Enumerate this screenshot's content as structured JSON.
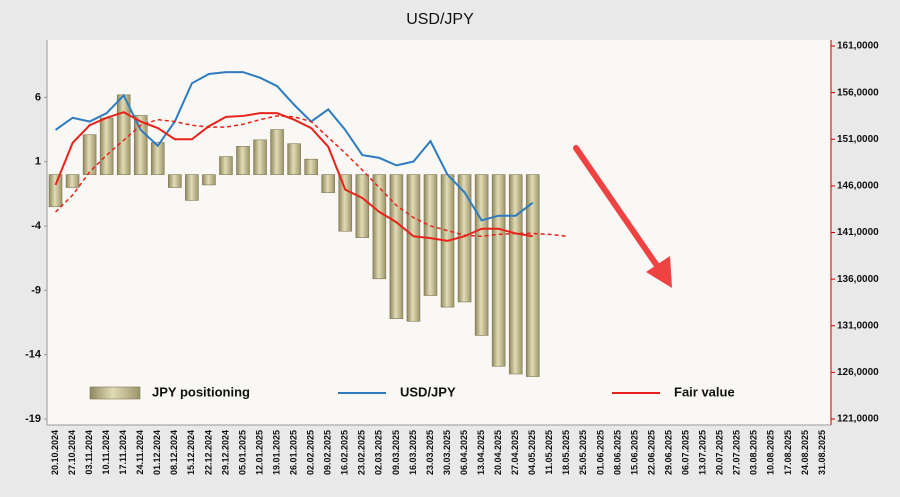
{
  "chart_data": {
    "type": "combo",
    "title": "USD/JPY",
    "categories": [
      "20.10.2024",
      "27.10.2024",
      "03.11.2024",
      "10.11.2024",
      "17.11.2024",
      "24.11.2024",
      "01.12.2024",
      "08.12.2024",
      "15.12.2024",
      "22.12.2024",
      "29.12.2024",
      "05.01.2025",
      "12.01.2025",
      "19.01.2025",
      "26.01.2025",
      "02.02.2025",
      "09.02.2025",
      "16.02.2025",
      "23.02.2025",
      "02.03.2025",
      "09.03.2025",
      "16.03.2025",
      "23.03.2025",
      "30.03.2025",
      "06.04.2025",
      "13.04.2025",
      "20.04.2025",
      "27.04.2025",
      "04.05.2025",
      "11.05.2025",
      "18.05.2025",
      "25.05.2025",
      "01.06.2025",
      "08.06.2025",
      "15.06.2025",
      "22.06.2025",
      "29.06.2025",
      "06.07.2025",
      "13.07.2025",
      "20.07.2025",
      "27.07.2025",
      "03.08.2025",
      "10.08.2025",
      "17.08.2025",
      "24.08.2025",
      "31.08.2025"
    ],
    "ylim": [
      -19,
      10
    ],
    "yticks": [
      -19,
      -14,
      -9,
      -4,
      1,
      6
    ],
    "y2lim": [
      121,
      161
    ],
    "y2ticks": [
      {
        "value": 121,
        "label": "121,0000"
      },
      {
        "value": 126,
        "label": "126,0000"
      },
      {
        "value": 131,
        "label": "131,0000"
      },
      {
        "value": 136,
        "label": "136,0000"
      },
      {
        "value": 141,
        "label": "141,0000"
      },
      {
        "value": 146,
        "label": "146,0000"
      },
      {
        "value": 151,
        "label": "151,0000"
      },
      {
        "value": 156,
        "label": "156,0000"
      },
      {
        "value": 161,
        "label": "161,0000"
      }
    ],
    "grid": false,
    "legend": "bottom",
    "series": [
      {
        "name": "JPY positioning",
        "type": "bar",
        "color": "#c9c197",
        "values": [
          -2.5,
          -1.0,
          3.1,
          4.4,
          6.2,
          4.6,
          2.5,
          -1.0,
          -2.0,
          -0.8,
          1.4,
          2.2,
          2.7,
          3.5,
          2.4,
          1.2,
          -1.4,
          -4.4,
          -4.9,
          -8.1,
          -11.2,
          -11.4,
          -9.4,
          -10.3,
          -9.9,
          -12.5,
          -14.9,
          -15.5,
          -15.7,
          null,
          null,
          null,
          null,
          null,
          null,
          null,
          null,
          null,
          null,
          null,
          null,
          null,
          null,
          null,
          null,
          null
        ]
      },
      {
        "name": "USD/JPY",
        "type": "line",
        "color": "#2e7cc0",
        "axis": "y2",
        "values": [
          152.0,
          153.3,
          152.9,
          153.8,
          155.7,
          152.0,
          150.3,
          152.9,
          157.0,
          158.0,
          158.2,
          158.2,
          157.6,
          156.7,
          154.7,
          152.9,
          154.2,
          152.0,
          149.3,
          149.0,
          148.2,
          148.6,
          150.8,
          147.2,
          145.3,
          142.3,
          142.8,
          142.8,
          144.2,
          null,
          null,
          null,
          null,
          null,
          null,
          null,
          null,
          null,
          null,
          null,
          null,
          null,
          null,
          null,
          null,
          null
        ]
      },
      {
        "name": "Fair value",
        "type": "line",
        "color": "#e8231c",
        "axis": "y2",
        "values": [
          146.1,
          150.6,
          152.5,
          153.3,
          153.9,
          152.9,
          152.2,
          151.0,
          151.0,
          152.4,
          153.4,
          153.5,
          153.8,
          153.8,
          153.1,
          152.2,
          150.2,
          145.6,
          144.7,
          143.2,
          142.1,
          140.6,
          140.4,
          140.1,
          140.6,
          141.4,
          141.4,
          140.9,
          140.6,
          null,
          null,
          null,
          null,
          null,
          null,
          null,
          null,
          null,
          null,
          null,
          null,
          null,
          null,
          null,
          null,
          null
        ]
      },
      {
        "type": "line",
        "color": "#e8231c",
        "axis": "y2",
        "dash": true,
        "values": [
          143.2,
          145.0,
          147.5,
          149.3,
          150.9,
          152.5,
          153.1,
          152.9,
          152.5,
          152.3,
          152.3,
          152.6,
          153.1,
          153.5,
          153.4,
          152.9,
          151.2,
          149.5,
          147.7,
          145.8,
          143.9,
          142.6,
          141.7,
          141.2,
          140.7,
          140.6,
          140.8,
          140.9,
          140.9,
          140.8,
          140.6,
          null,
          null,
          null,
          null,
          null,
          null,
          null,
          null,
          null,
          null,
          null,
          null,
          null,
          null,
          null
        ]
      }
    ]
  }
}
